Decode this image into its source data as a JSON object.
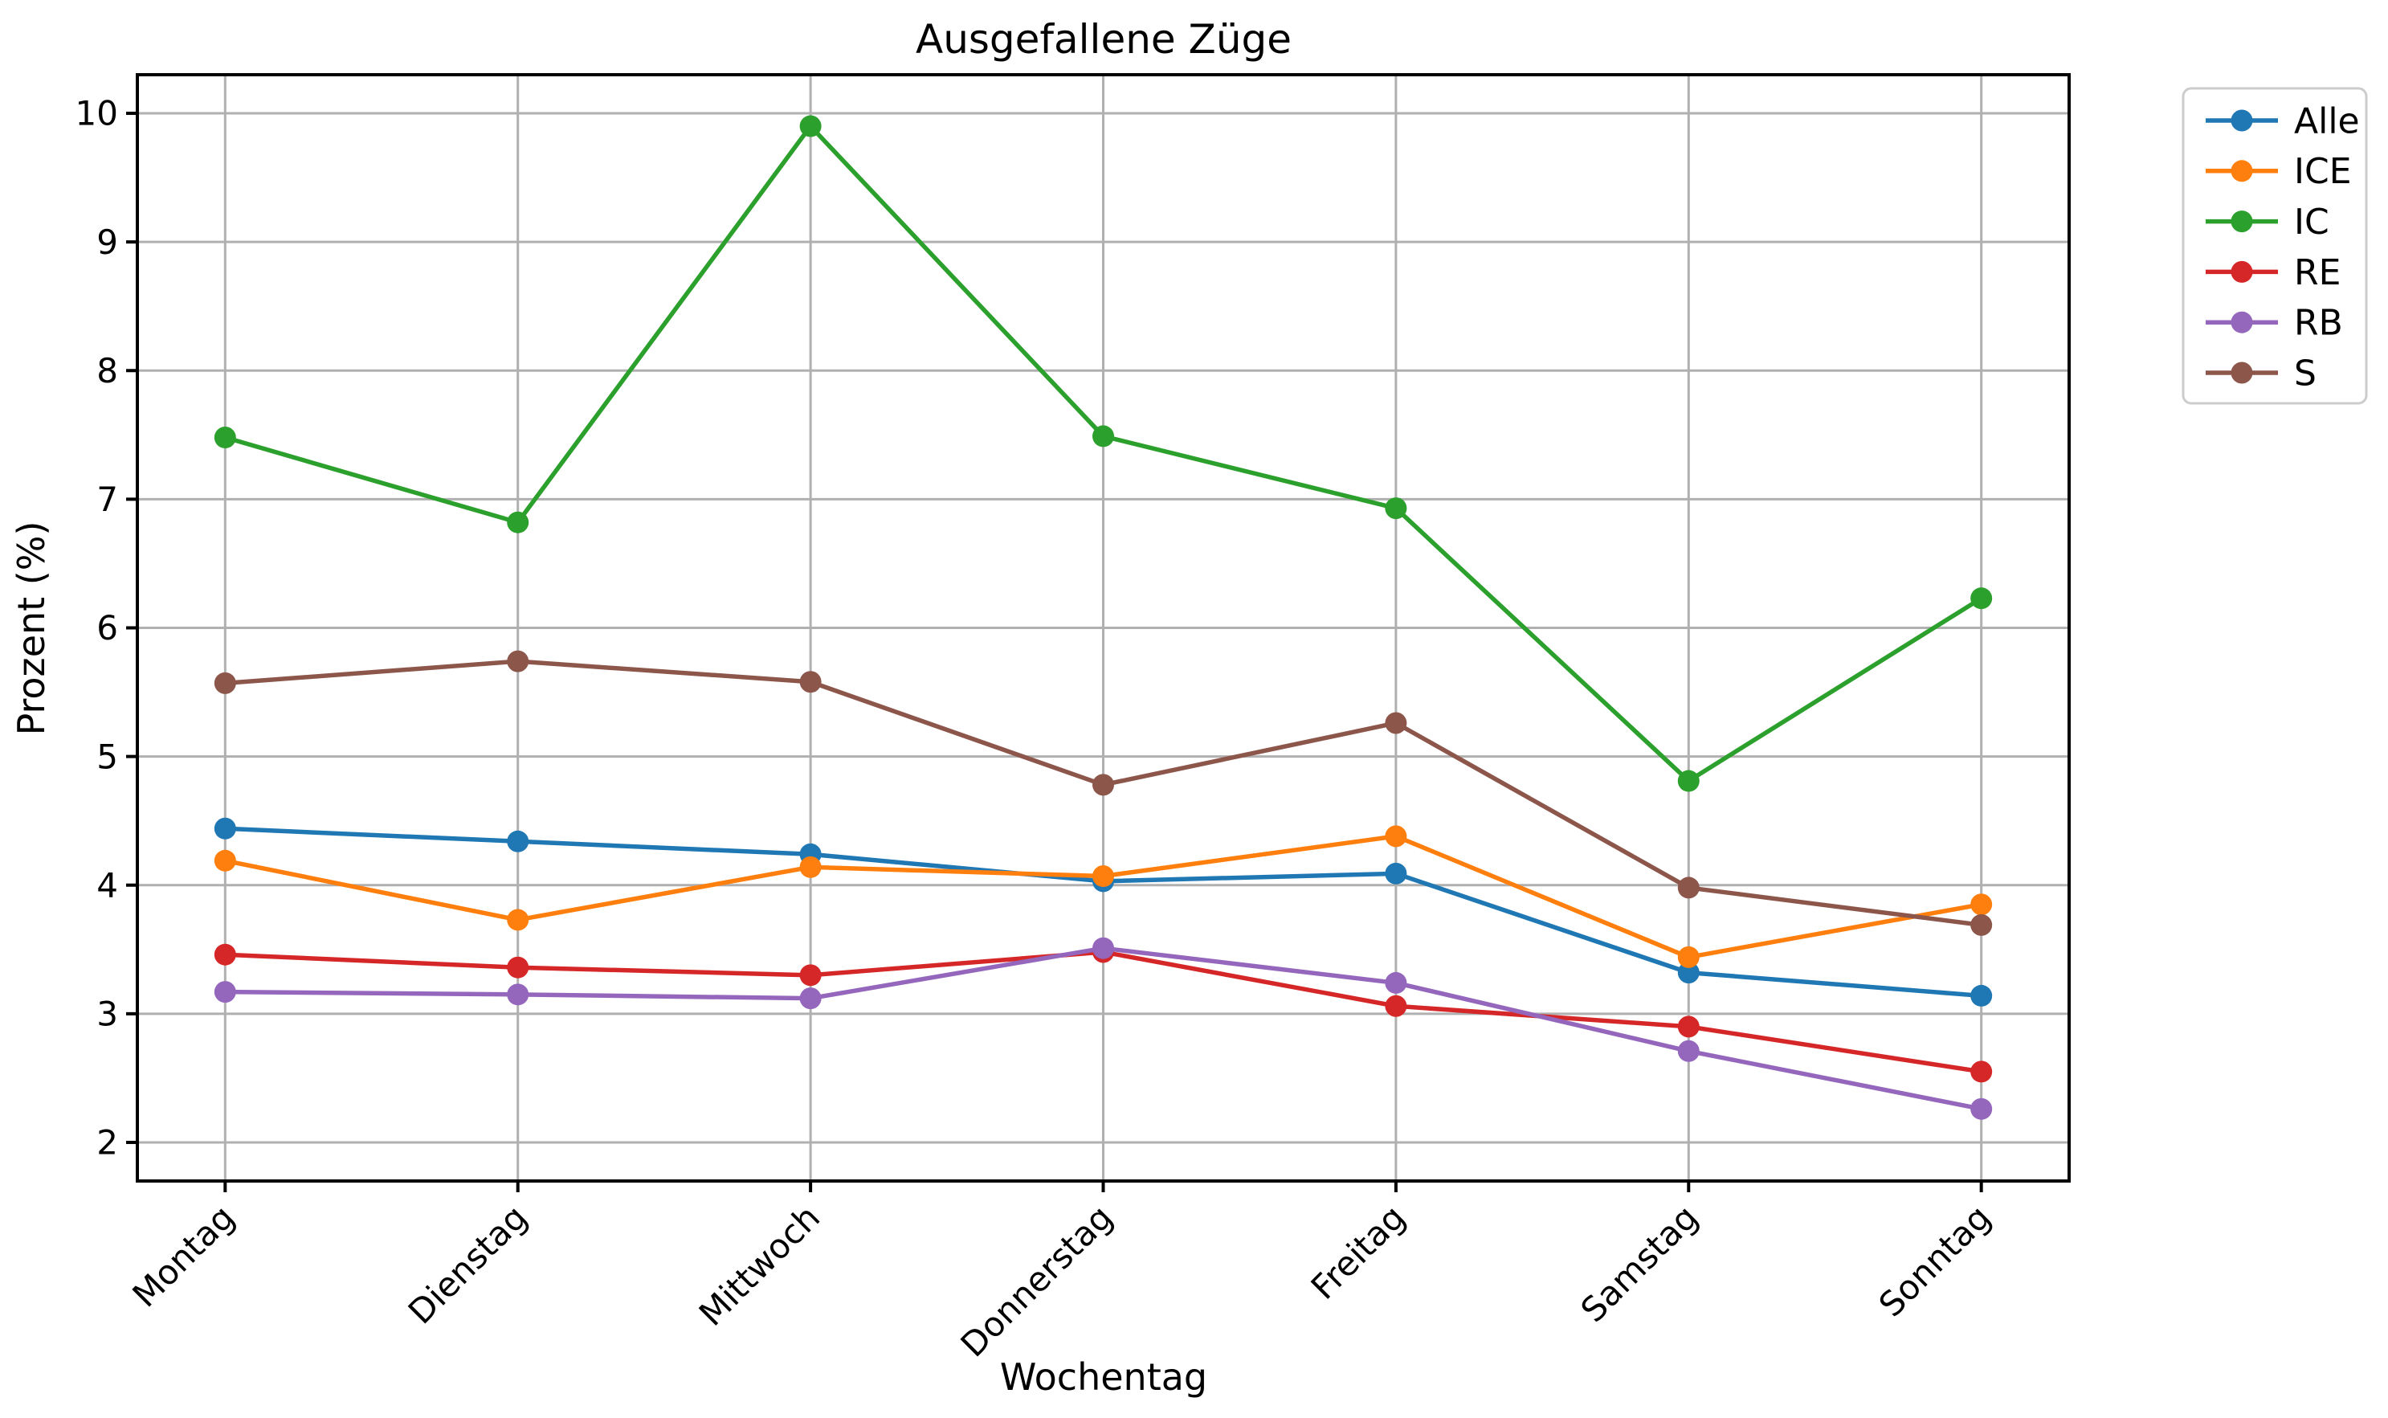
{
  "title": "Ausgefallene Züge",
  "chart_data": {
    "type": "line",
    "title": "Ausgefallene Züge",
    "xlabel": "Wochentag",
    "ylabel": "Prozent (%)",
    "categories": [
      "Montag",
      "Dienstag",
      "Mittwoch",
      "Donnerstag",
      "Freitag",
      "Samstag",
      "Sonntag"
    ],
    "series": [
      {
        "name": "Alle",
        "color": "#1f77b4",
        "values": [
          4.44,
          4.34,
          4.24,
          4.03,
          4.09,
          3.32,
          3.14
        ]
      },
      {
        "name": "ICE",
        "color": "#ff7f0e",
        "values": [
          4.19,
          3.73,
          4.14,
          4.07,
          4.38,
          3.44,
          3.85
        ]
      },
      {
        "name": "IC",
        "color": "#2ca02c",
        "values": [
          7.48,
          6.82,
          9.9,
          7.49,
          6.93,
          4.81,
          6.23
        ]
      },
      {
        "name": "RE",
        "color": "#d62728",
        "values": [
          3.46,
          3.36,
          3.3,
          3.48,
          3.06,
          2.9,
          2.55
        ]
      },
      {
        "name": "RB",
        "color": "#9467bd",
        "values": [
          3.17,
          3.15,
          3.12,
          3.51,
          3.24,
          2.71,
          2.26
        ]
      },
      {
        "name": "S",
        "color": "#8c564b",
        "values": [
          5.57,
          5.74,
          5.58,
          4.78,
          5.26,
          3.98,
          3.69
        ]
      }
    ],
    "yticks": [
      2,
      3,
      4,
      5,
      6,
      7,
      8,
      9,
      10
    ],
    "ylim": [
      1.7,
      10.3
    ],
    "grid": true,
    "marker": "circle",
    "legend_position": "upper-right-outside"
  }
}
